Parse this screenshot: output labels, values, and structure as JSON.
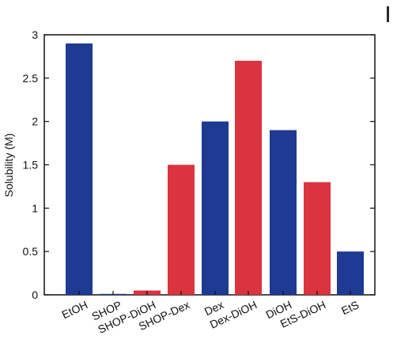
{
  "chart_data": {
    "type": "bar",
    "categories": [
      "EtOH",
      "SHOP",
      "SHOP-DiOH",
      "SHOP-Dex",
      "Dex",
      "Dex-DiOH",
      "DiOH",
      "EtS-DiOH",
      "EtS"
    ],
    "values": [
      2.9,
      0.01,
      0.05,
      1.5,
      2.0,
      2.7,
      1.9,
      1.3,
      0.5
    ],
    "bar_colors": [
      "#1f3a93",
      "#1f3a93",
      "#d9343f",
      "#d9343f",
      "#1f3a93",
      "#d9343f",
      "#1f3a93",
      "#d9343f",
      "#1f3a93"
    ],
    "title": "",
    "xlabel": "",
    "ylabel": "Solubility (M)",
    "ylim": [
      0,
      3
    ],
    "yticks": [
      0,
      0.5,
      1,
      1.5,
      2,
      2.5,
      3
    ],
    "ytick_labels": [
      "0",
      "0.5",
      "1",
      "1.5",
      "2",
      "2.5",
      "3"
    ],
    "grid": false,
    "legend": "none"
  },
  "colors": {
    "blue": "#1f3a93",
    "red": "#d9343f"
  }
}
